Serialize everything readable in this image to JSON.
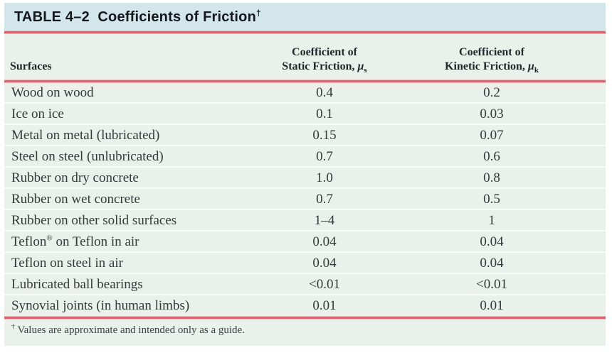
{
  "title": {
    "label": "TABLE 4–2  Coefficients of Friction",
    "dagger": "†"
  },
  "header": {
    "surfaces": "Surfaces",
    "static_line1": "Coefficient of",
    "static_line2": "Static Friction, ",
    "kinetic_line1": "Coefficient of",
    "kinetic_line2": "Kinetic Friction, ",
    "mu_symbol": "μ",
    "static_subscript": "s",
    "kinetic_subscript": "k"
  },
  "rows": [
    {
      "surface": "Wood on wood",
      "surface_sup": "",
      "surface_rest": "",
      "static": "0.4",
      "kinetic": "0.2"
    },
    {
      "surface": "Ice on ice",
      "surface_sup": "",
      "surface_rest": "",
      "static": "0.1",
      "kinetic": "0.03"
    },
    {
      "surface": "Metal on metal (lubricated)",
      "surface_sup": "",
      "surface_rest": "",
      "static": "0.15",
      "kinetic": "0.07"
    },
    {
      "surface": "Steel on steel (unlubricated)",
      "surface_sup": "",
      "surface_rest": "",
      "static": "0.7",
      "kinetic": "0.6"
    },
    {
      "surface": "Rubber on dry concrete",
      "surface_sup": "",
      "surface_rest": "",
      "static": "1.0",
      "kinetic": "0.8"
    },
    {
      "surface": "Rubber on wet concrete",
      "surface_sup": "",
      "surface_rest": "",
      "static": "0.7",
      "kinetic": "0.5"
    },
    {
      "surface": "Rubber on other solid surfaces",
      "surface_sup": "",
      "surface_rest": "",
      "static": "1–4",
      "kinetic": "1"
    },
    {
      "surface": "Teflon",
      "surface_sup": "®",
      "surface_rest": " on Teflon in air",
      "static": "0.04",
      "kinetic": "0.04"
    },
    {
      "surface": "Teflon on steel in air",
      "surface_sup": "",
      "surface_rest": "",
      "static": "0.04",
      "kinetic": "0.04"
    },
    {
      "surface": "Lubricated ball bearings",
      "surface_sup": "",
      "surface_rest": "",
      "static": "<0.01",
      "kinetic": "<0.01"
    },
    {
      "surface": "Synovial joints (in human limbs)",
      "surface_sup": "",
      "surface_rest": "",
      "static": "0.01",
      "kinetic": "0.01"
    }
  ],
  "footnote": {
    "marker": "†",
    "text": "Values are approximate and intended only as a guide."
  },
  "colors": {
    "title_bar": "#d3e7ea",
    "table_background": "#e9f1ea",
    "rule_red": "#d86570"
  }
}
